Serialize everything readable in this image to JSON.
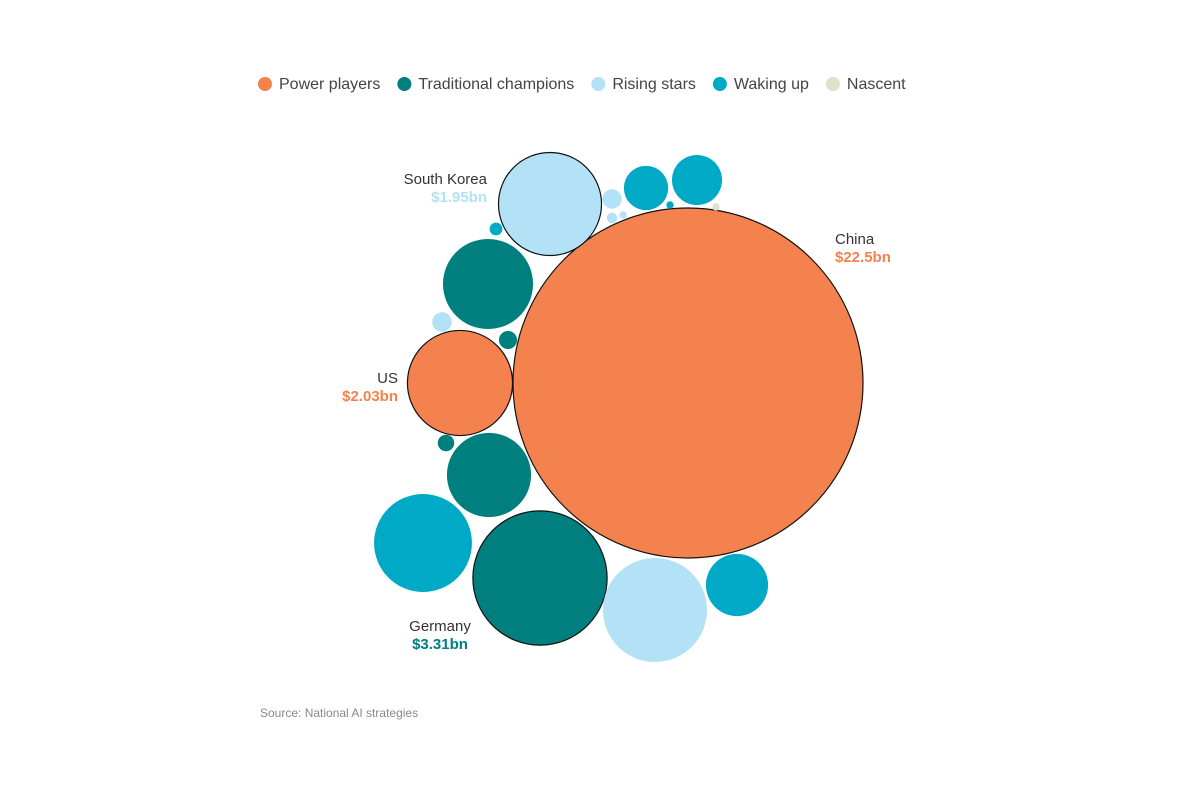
{
  "chart_data": {
    "type": "packed_bubble",
    "source": "Source: National AI strategies",
    "series": [
      {
        "name": "Power players",
        "color": "#f3824f",
        "names": [
          "China",
          "US"
        ],
        "values": [
          22.5,
          2.03
        ],
        "value_labels": [
          "$22.5bn",
          "$2.03bn"
        ]
      },
      {
        "name": "Traditional champions",
        "color": "#007f7f",
        "names": [
          "Germany",
          null,
          null,
          null,
          null
        ],
        "values": [
          3.31,
          1.49,
          1.3,
          0.06,
          0.05
        ],
        "value_labels": [
          "$3.31bn",
          null,
          null,
          null,
          null
        ]
      },
      {
        "name": "Rising stars",
        "color": "#b3e2f6",
        "names": [
          "South Korea",
          null,
          null,
          null,
          null,
          null
        ],
        "values": [
          1.95,
          1.99,
          0.07,
          0.07,
          0.02,
          0.01
        ],
        "value_labels": [
          "$1.95bn",
          null,
          null,
          null,
          null,
          null
        ]
      },
      {
        "name": "Waking up",
        "color": "#00a9c5",
        "names": [
          null,
          null,
          null,
          null,
          null,
          null
        ],
        "values": [
          1.76,
          0.71,
          0.36,
          0.46,
          0.03,
          0.01
        ],
        "value_labels": [
          null,
          null,
          null,
          null,
          null,
          null
        ]
      },
      {
        "name": "Nascent",
        "color": "#dde3c9",
        "names": [
          null
        ],
        "values": [
          0.01
        ],
        "value_labels": [
          null
        ]
      }
    ]
  }
}
